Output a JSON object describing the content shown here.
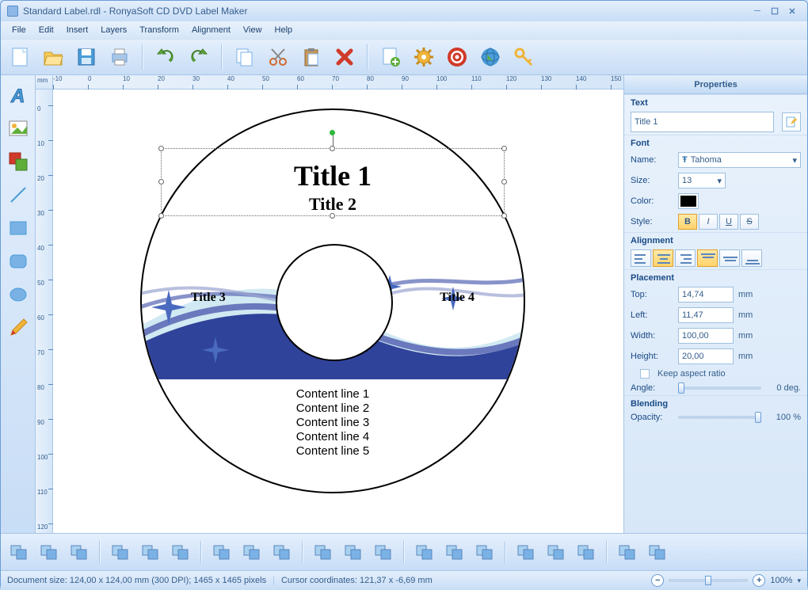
{
  "titlebar": {
    "title": "Standard Label.rdl - RonyaSoft CD DVD Label Maker"
  },
  "menu": [
    "File",
    "Edit",
    "Insert",
    "Layers",
    "Transform",
    "Alignment",
    "View",
    "Help"
  ],
  "toolbar_top": [
    "new",
    "open",
    "save",
    "print",
    "undo",
    "redo",
    "copy",
    "cut",
    "paste",
    "delete",
    "page-add",
    "gear",
    "help-ring",
    "globe",
    "key"
  ],
  "left_tools": [
    "text-tool",
    "image-tool",
    "clipart-tool",
    "line-tool",
    "rect-tool",
    "roundrect-tool",
    "ellipse-tool",
    "pencil-tool"
  ],
  "ruler": {
    "unit_label": "mm",
    "h_marks": [
      "-10",
      "0",
      "10",
      "20",
      "30",
      "40",
      "50",
      "60",
      "70",
      "80",
      "90",
      "100",
      "110",
      "120",
      "130",
      "140",
      "150"
    ],
    "v_marks": [
      "0",
      "10",
      "20",
      "30",
      "40",
      "50",
      "60",
      "70",
      "80",
      "90",
      "100",
      "110",
      "120"
    ]
  },
  "disc": {
    "title1": "Title 1",
    "title2": "Title 2",
    "title3": "Title 3",
    "title4": "Title 4",
    "content": [
      "Content line 1",
      "Content line 2",
      "Content line 3",
      "Content line 4",
      "Content line 5"
    ],
    "wave_colors": {
      "dark": "#30439a",
      "mid": "#6a78bd",
      "light": "#c5e4ef"
    }
  },
  "props": {
    "header": "Properties",
    "text": {
      "label": "Text",
      "value": "Title 1"
    },
    "font": {
      "label": "Font",
      "name_label": "Name:",
      "name_value": "Tahoma",
      "size_label": "Size:",
      "size_value": "13",
      "color_label": "Color:",
      "color_value": "#000000",
      "style_label": "Style:",
      "bold": "B",
      "italic": "I",
      "underline": "U",
      "strike": "S"
    },
    "alignment": {
      "label": "Alignment"
    },
    "placement": {
      "label": "Placement",
      "top_label": "Top:",
      "top_value": "14,74",
      "left_label": "Left:",
      "left_value": "11,47",
      "width_label": "Width:",
      "width_value": "100,00",
      "height_label": "Height:",
      "height_value": "20,00",
      "keep_ratio": "Keep aspect ratio",
      "angle_label": "Angle:",
      "angle_value": "0 deg.",
      "unit": "mm"
    },
    "blending": {
      "label": "Blending",
      "opacity_label": "Opacity:",
      "opacity_value": "100 %"
    }
  },
  "toolbar_bottom": [
    "group",
    "ungroup",
    "front",
    "back",
    "forward",
    "backward",
    "center-h",
    "dist-h",
    "dist-v",
    "rotate-l",
    "rotate-r",
    "flip-h",
    "flip-v",
    "align-l",
    "align-c",
    "align-r",
    "align-t",
    "align-m",
    "align-b",
    "same-w"
  ],
  "status": {
    "doc": "Document size:  124,00 x 124,00 mm (300 DPI);  1465 x 1465 pixels",
    "cursor": "Cursor coordinates: 121,37 x -6,69 mm",
    "zoom": "100%"
  }
}
